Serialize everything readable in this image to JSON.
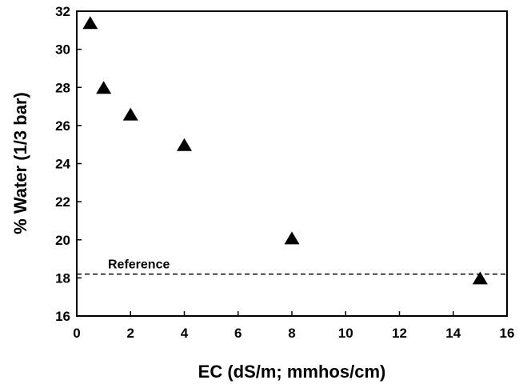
{
  "chart_data": {
    "type": "scatter",
    "title": "",
    "xlabel": "EC (dS/m; mmhos/cm)",
    "ylabel": "% Water (1/3 bar)",
    "xlim": [
      0,
      16
    ],
    "ylim": [
      16,
      32
    ],
    "xticks": [
      "0",
      "2",
      "4",
      "6",
      "8",
      "10",
      "12",
      "14",
      "16"
    ],
    "yticks": [
      "16",
      "18",
      "20",
      "22",
      "24",
      "26",
      "28",
      "30",
      "32"
    ],
    "grid": false,
    "marker": "triangle",
    "marker_color": "#000000",
    "series": [
      {
        "x": [
          0.5,
          1,
          2,
          4,
          8,
          15
        ],
        "y": [
          31.4,
          28.0,
          26.6,
          25.0,
          20.1,
          18.0
        ]
      }
    ],
    "reference_line": {
      "label": "Reference",
      "y": 18.2,
      "style": "dashed"
    }
  }
}
